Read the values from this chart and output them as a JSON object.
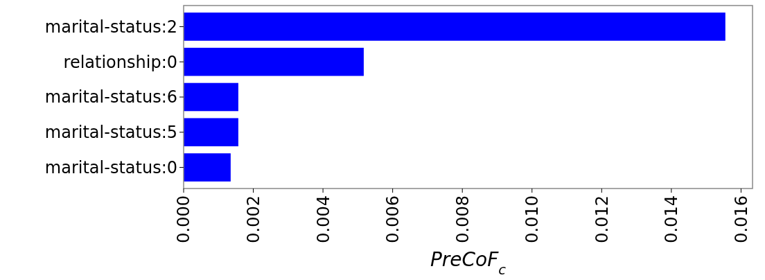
{
  "chart_data": {
    "type": "bar",
    "orientation": "horizontal",
    "xlabel": "PreCoF$_{c}$",
    "categories": [
      "marital-status:2",
      "relationship:0",
      "marital-status:6",
      "marital-status:5",
      "marital-status:0"
    ],
    "values": [
      0.01555,
      0.00517,
      0.00157,
      0.00157,
      0.00135
    ],
    "color": "#0000ff",
    "xlim": [
      0,
      0.01633
    ],
    "xticks": [
      {
        "value": 0,
        "label": "0.000"
      },
      {
        "value": 0.002,
        "label": "0.002"
      },
      {
        "value": 0.004,
        "label": "0.004"
      },
      {
        "value": 0.006,
        "label": "0.006"
      },
      {
        "value": 0.008,
        "label": "0.008"
      },
      {
        "value": 0.01,
        "label": "0.010"
      },
      {
        "value": 0.012,
        "label": "0.012"
      },
      {
        "value": 0.014,
        "label": "0.014"
      },
      {
        "value": 0.016,
        "label": "0.016"
      }
    ],
    "grid": false
  }
}
